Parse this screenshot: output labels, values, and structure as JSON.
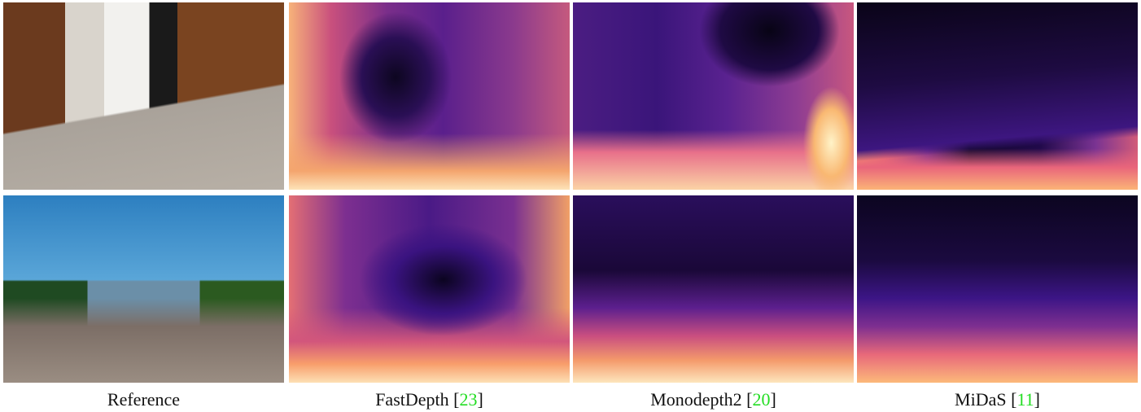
{
  "captions": [
    {
      "label": "Reference"
    },
    {
      "label": "FastDepth",
      "open": "[",
      "ref": "23",
      "close": "]"
    },
    {
      "label": "Monodepth2",
      "open": "[",
      "ref": "20",
      "close": "]"
    },
    {
      "label": "MiDaS",
      "open": "[",
      "ref": "11",
      "close": "]"
    }
  ]
}
